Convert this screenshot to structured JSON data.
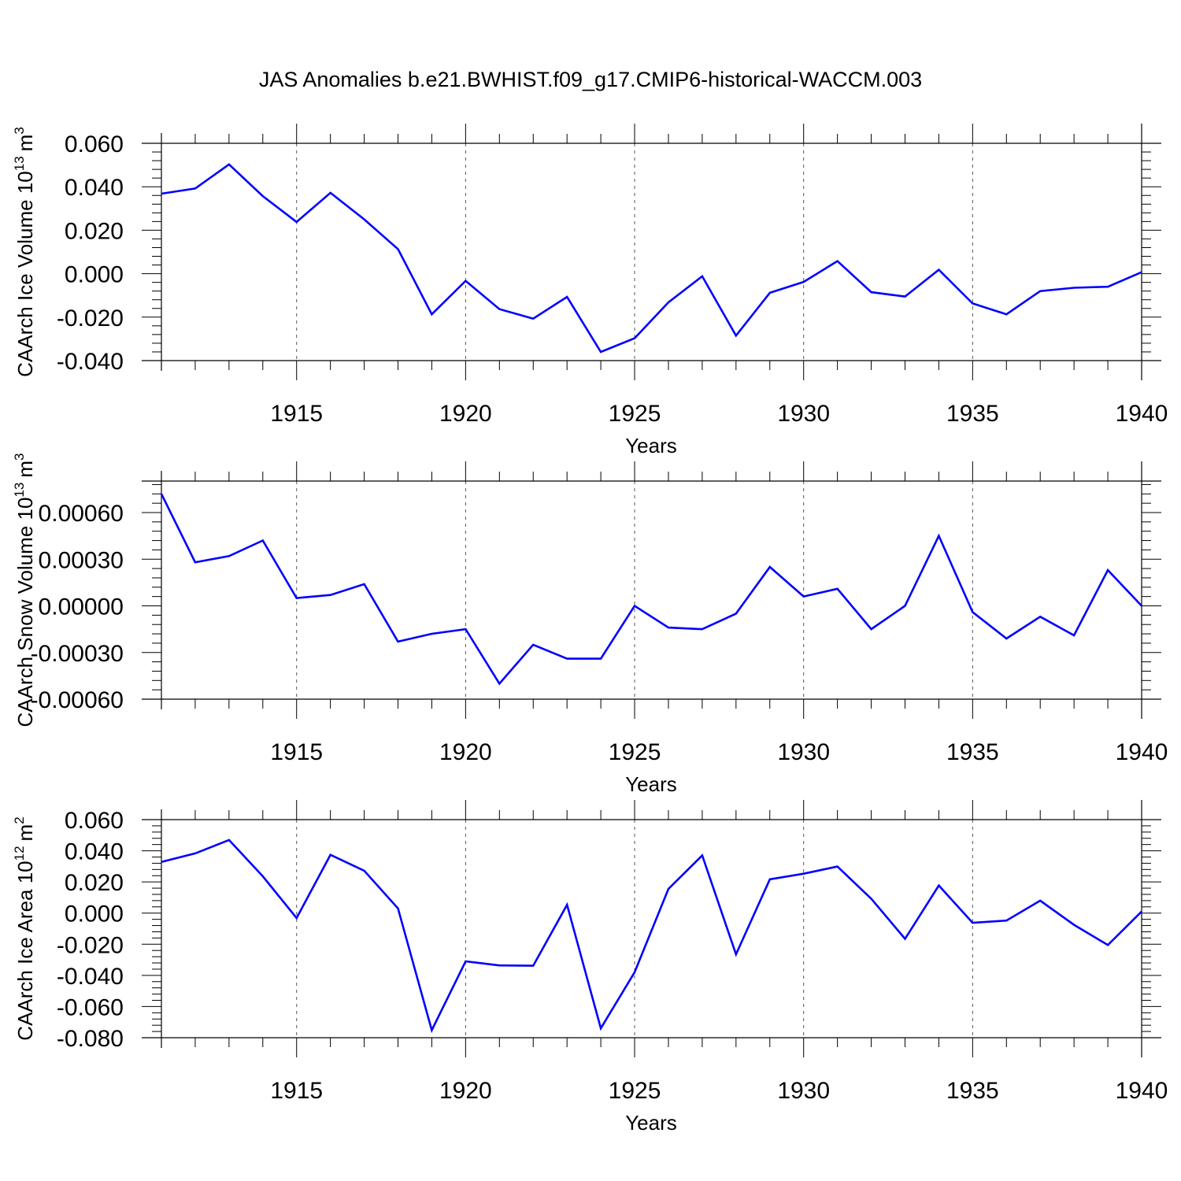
{
  "figure": {
    "title": "JAS Anomalies b.e21.BWHIST.f09_g17.CMIP6-historical-WACCM.003"
  },
  "chart_data": [
    {
      "type": "line",
      "title": "",
      "xlabel": "Years",
      "ylabel": "CAArch Ice Volume 10",
      "ylabel_exp": "13",
      "ylabel_unit": "m",
      "ylabel_unit_exp": "3",
      "xlim": [
        1911,
        1940
      ],
      "ylim": [
        -0.04,
        0.06
      ],
      "xticks": [
        1915,
        1920,
        1925,
        1930,
        1935,
        1940
      ],
      "xtick_labels": [
        "1915",
        "1920",
        "1925",
        "1930",
        "1935",
        "1940"
      ],
      "yticks": [
        -0.04,
        -0.02,
        0.0,
        0.02,
        0.04,
        0.06
      ],
      "ytick_labels": [
        "-0.040",
        "-0.020",
        "0.000",
        "0.020",
        "0.040",
        "0.060"
      ],
      "grid": "dashed vertical at major x ticks",
      "color": "#0000ff",
      "x": [
        1911,
        1912,
        1913,
        1914,
        1915,
        1916,
        1917,
        1918,
        1919,
        1920,
        1921,
        1922,
        1923,
        1924,
        1925,
        1926,
        1927,
        1928,
        1929,
        1930,
        1931,
        1932,
        1933,
        1934,
        1935,
        1936,
        1937,
        1938,
        1939,
        1940
      ],
      "values": [
        0.0368,
        0.0392,
        0.0503,
        0.0357,
        0.0238,
        0.0372,
        0.025,
        0.0113,
        -0.0187,
        -0.0033,
        -0.0163,
        -0.0207,
        -0.0107,
        -0.036,
        -0.0297,
        -0.0132,
        -0.0012,
        -0.0285,
        -0.0088,
        -0.0038,
        0.0058,
        -0.0085,
        -0.0105,
        0.0018,
        -0.0137,
        -0.0187,
        -0.008,
        -0.0065,
        -0.006,
        0.0007
      ]
    },
    {
      "type": "line",
      "title": "",
      "xlabel": "Years",
      "ylabel": "CAArch Snow Volume 10",
      "ylabel_exp": "13",
      "ylabel_unit": "m",
      "ylabel_unit_exp": "3",
      "xlim": [
        1911,
        1940
      ],
      "ylim": [
        -0.0006,
        0.00083
      ],
      "xticks": [
        1915,
        1920,
        1925,
        1930,
        1935,
        1940
      ],
      "xtick_labels": [
        "1915",
        "1920",
        "1925",
        "1930",
        "1935",
        "1940"
      ],
      "yticks": [
        -0.0006,
        -0.0003,
        0.0,
        0.0003,
        0.0006
      ],
      "ytick_labels": [
        "-0.00060",
        "-0.00030",
        "0.00000",
        "0.00030",
        "0.00060"
      ],
      "grid": "dashed vertical at major x ticks",
      "color": "#0000ff",
      "x": [
        1911,
        1912,
        1913,
        1914,
        1915,
        1916,
        1917,
        1918,
        1919,
        1920,
        1921,
        1922,
        1923,
        1924,
        1925,
        1926,
        1927,
        1928,
        1929,
        1930,
        1931,
        1932,
        1933,
        1934,
        1935,
        1936,
        1937,
        1938,
        1939,
        1940
      ],
      "values": [
        0.00072,
        0.00028,
        0.00032,
        0.00042,
        5e-05,
        7e-05,
        0.00014,
        -0.00023,
        -0.00018,
        -0.00015,
        -0.0005,
        -0.00025,
        -0.00034,
        -0.00034,
        0.0,
        -0.00014,
        -0.00015,
        -5e-05,
        0.00025,
        6e-05,
        0.00011,
        -0.00015,
        0.0,
        0.00045,
        -4e-05,
        -0.00021,
        -7e-05,
        -0.00019,
        0.00023,
        0.0
      ]
    },
    {
      "type": "line",
      "title": "",
      "xlabel": "Years",
      "ylabel": "CAArch Ice Area 10",
      "ylabel_exp": "12",
      "ylabel_unit": "m",
      "ylabel_unit_exp": "2",
      "xlim": [
        1911,
        1940
      ],
      "ylim": [
        -0.08,
        0.06
      ],
      "xticks": [
        1915,
        1920,
        1925,
        1930,
        1935,
        1940
      ],
      "xtick_labels": [
        "1915",
        "1920",
        "1925",
        "1930",
        "1935",
        "1940"
      ],
      "yticks": [
        -0.08,
        -0.06,
        -0.04,
        -0.02,
        0.0,
        0.02,
        0.04,
        0.06
      ],
      "ytick_labels": [
        "-0.080",
        "-0.060",
        "-0.040",
        "-0.020",
        "0.000",
        "0.020",
        "0.040",
        "0.060"
      ],
      "grid": "dashed vertical at major x ticks",
      "color": "#0000ff",
      "x": [
        1911,
        1912,
        1913,
        1914,
        1915,
        1916,
        1917,
        1918,
        1919,
        1920,
        1921,
        1922,
        1923,
        1924,
        1925,
        1926,
        1927,
        1928,
        1929,
        1930,
        1931,
        1932,
        1933,
        1934,
        1935,
        1936,
        1937,
        1938,
        1939,
        1940
      ],
      "values": [
        0.0328,
        0.0383,
        0.0469,
        0.0236,
        -0.0032,
        0.0374,
        0.0272,
        0.003,
        -0.0752,
        -0.031,
        -0.0336,
        -0.0338,
        0.0053,
        -0.074,
        -0.038,
        0.0155,
        0.037,
        -0.0265,
        0.0217,
        0.0253,
        0.0299,
        0.0092,
        -0.0165,
        0.0177,
        -0.0062,
        -0.0048,
        0.008,
        -0.0075,
        -0.0205,
        0.001
      ]
    }
  ]
}
